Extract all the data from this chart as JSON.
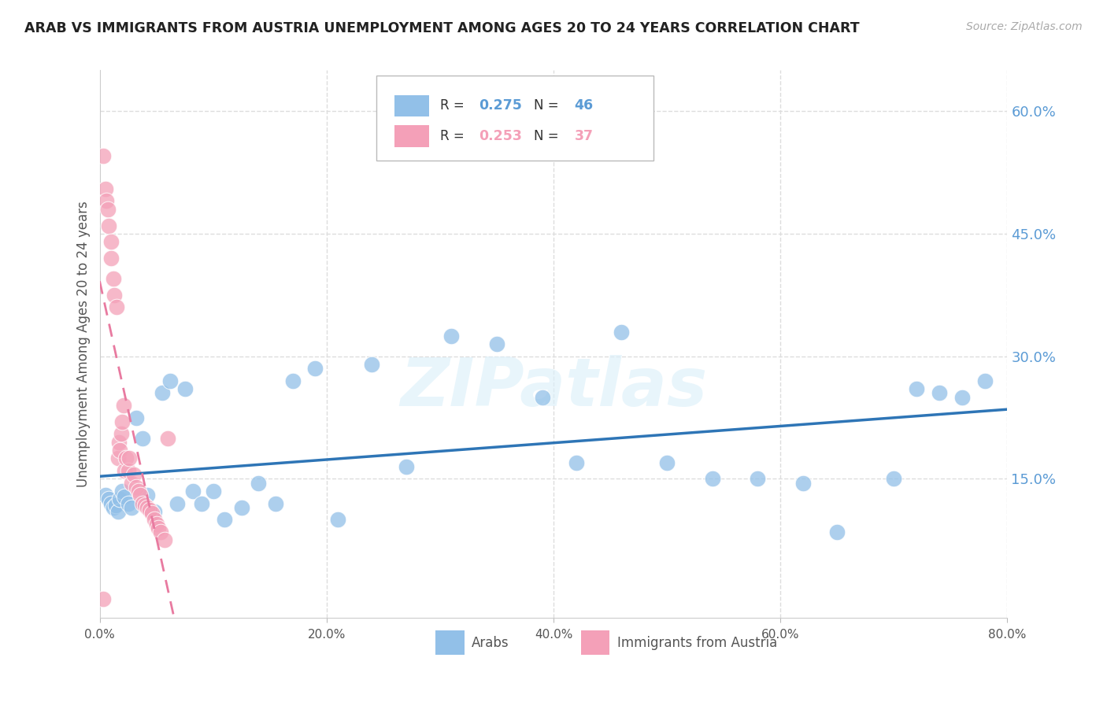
{
  "title": "ARAB VS IMMIGRANTS FROM AUSTRIA UNEMPLOYMENT AMONG AGES 20 TO 24 YEARS CORRELATION CHART",
  "source": "Source: ZipAtlas.com",
  "ylabel": "Unemployment Among Ages 20 to 24 years",
  "xlim": [
    0.0,
    0.8
  ],
  "ylim": [
    -0.02,
    0.65
  ],
  "xtick_vals": [
    0.0,
    0.2,
    0.4,
    0.6,
    0.8
  ],
  "xtick_labels": [
    "0.0%",
    "20.0%",
    "40.0%",
    "60.0%",
    "80.0%"
  ],
  "ytick_right_vals": [
    0.15,
    0.3,
    0.45,
    0.6
  ],
  "ytick_right_labels": [
    "15.0%",
    "30.0%",
    "45.0%",
    "60.0%"
  ],
  "arab_color": "#92C0E8",
  "austria_color": "#F4A0B8",
  "arab_line_color": "#2E75B6",
  "austria_line_color": "#E87AA0",
  "right_axis_color": "#5B9BD5",
  "arab_R": "0.275",
  "arab_N": "46",
  "austria_R": "0.253",
  "austria_N": "37",
  "background_color": "#FFFFFF",
  "grid_color": "#DDDDDD",
  "watermark": "ZIPatlas",
  "arab_scatter_x": [
    0.005,
    0.008,
    0.01,
    0.012,
    0.014,
    0.016,
    0.018,
    0.02,
    0.022,
    0.025,
    0.028,
    0.032,
    0.038,
    0.042,
    0.048,
    0.055,
    0.062,
    0.068,
    0.075,
    0.082,
    0.09,
    0.1,
    0.11,
    0.125,
    0.14,
    0.155,
    0.17,
    0.19,
    0.21,
    0.24,
    0.27,
    0.31,
    0.35,
    0.39,
    0.42,
    0.46,
    0.5,
    0.54,
    0.58,
    0.62,
    0.65,
    0.7,
    0.74,
    0.76,
    0.78,
    0.72
  ],
  "arab_scatter_y": [
    0.13,
    0.125,
    0.12,
    0.115,
    0.118,
    0.11,
    0.125,
    0.135,
    0.128,
    0.12,
    0.115,
    0.225,
    0.2,
    0.13,
    0.11,
    0.255,
    0.27,
    0.12,
    0.26,
    0.135,
    0.12,
    0.135,
    0.1,
    0.115,
    0.145,
    0.12,
    0.27,
    0.285,
    0.1,
    0.29,
    0.165,
    0.325,
    0.315,
    0.25,
    0.17,
    0.33,
    0.17,
    0.15,
    0.15,
    0.145,
    0.085,
    0.15,
    0.255,
    0.25,
    0.27,
    0.26
  ],
  "austria_scatter_x": [
    0.003,
    0.005,
    0.006,
    0.007,
    0.008,
    0.01,
    0.01,
    0.012,
    0.013,
    0.015,
    0.016,
    0.017,
    0.018,
    0.019,
    0.02,
    0.021,
    0.022,
    0.023,
    0.025,
    0.026,
    0.028,
    0.03,
    0.032,
    0.034,
    0.036,
    0.038,
    0.04,
    0.042,
    0.044,
    0.046,
    0.048,
    0.05,
    0.052,
    0.054,
    0.057,
    0.06,
    0.003
  ],
  "austria_scatter_y": [
    0.545,
    0.505,
    0.49,
    0.48,
    0.46,
    0.42,
    0.44,
    0.395,
    0.375,
    0.36,
    0.175,
    0.195,
    0.185,
    0.205,
    0.22,
    0.24,
    0.16,
    0.175,
    0.16,
    0.175,
    0.145,
    0.155,
    0.14,
    0.135,
    0.13,
    0.12,
    0.118,
    0.115,
    0.112,
    0.108,
    0.1,
    0.095,
    0.09,
    0.085,
    0.075,
    0.2,
    0.003
  ]
}
